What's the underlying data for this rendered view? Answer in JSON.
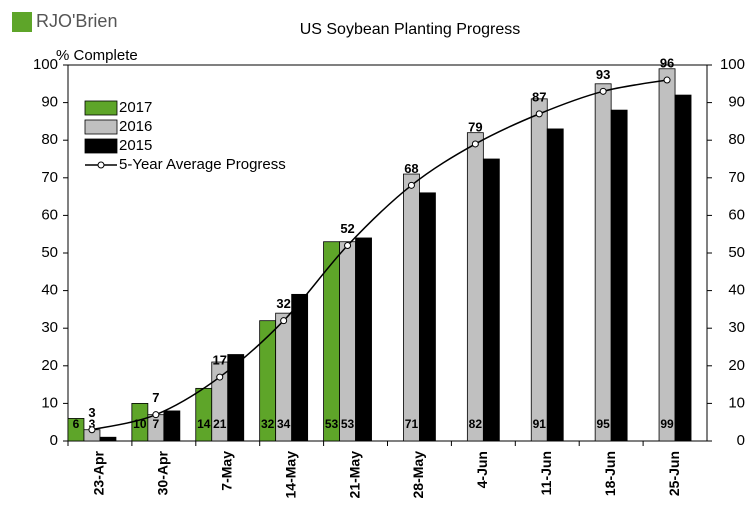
{
  "logo": "RJO'Brien",
  "chart_data": {
    "type": "bar",
    "title": "US Soybean Planting Progress",
    "y_label": "% Complete",
    "categories": [
      "23-Apr",
      "30-Apr",
      "7-May",
      "14-May",
      "21-May",
      "28-May",
      "4-Jun",
      "11-Jun",
      "18-Jun",
      "25-Jun"
    ],
    "series": [
      {
        "name": "2017",
        "color": "#5ea529",
        "values": [
          6,
          10,
          14,
          32,
          53,
          null,
          null,
          null,
          null,
          null
        ]
      },
      {
        "name": "2016",
        "color": "#c0c0c0",
        "values": [
          3,
          7,
          21,
          34,
          53,
          71,
          82,
          91,
          95,
          99
        ]
      },
      {
        "name": "2015",
        "color": "#000000",
        "values": [
          1,
          8,
          23,
          39,
          54,
          66,
          75,
          83,
          88,
          92
        ]
      },
      {
        "name": "5-Year Average Progress",
        "type": "line",
        "color": "#000000",
        "values": [
          3,
          7,
          17,
          32,
          52,
          68,
          79,
          87,
          93,
          96
        ]
      }
    ],
    "ylim": [
      0,
      100
    ],
    "yticks": [
      0,
      10,
      20,
      30,
      40,
      50,
      60,
      70,
      80,
      90,
      100
    ],
    "y2lim": [
      0,
      100
    ],
    "y2ticks": [
      0,
      10,
      20,
      30,
      40,
      50,
      60,
      70,
      80,
      90,
      100
    ],
    "legend": "upper left"
  }
}
